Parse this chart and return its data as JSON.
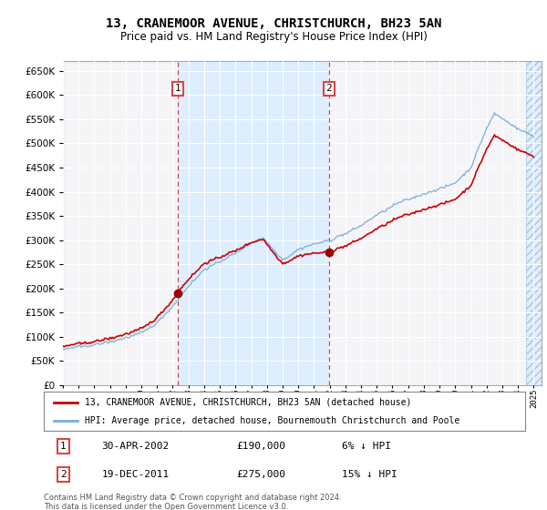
{
  "title": "13, CRANEMOOR AVENUE, CHRISTCHURCH, BH23 5AN",
  "subtitle": "Price paid vs. HM Land Registry's House Price Index (HPI)",
  "hpi_label": "HPI: Average price, detached house, Bournemouth Christchurch and Poole",
  "price_label": "13, CRANEMOOR AVENUE, CHRISTCHURCH, BH23 5AN (detached house)",
  "sale1_date": "30-APR-2002",
  "sale1_price": 190000,
  "sale1_note": "6% ↓ HPI",
  "sale2_date": "19-DEC-2011",
  "sale2_price": 275000,
  "sale2_note": "15% ↓ HPI",
  "footer": "Contains HM Land Registry data © Crown copyright and database right 2024.\nThis data is licensed under the Open Government Licence v3.0.",
  "hpi_color": "#7aaddb",
  "price_color": "#cc0000",
  "sale_marker_color": "#990000",
  "vline_color": "#dd4444",
  "highlight_color": "#ddeeff",
  "chart_bg": "#f0f4f8",
  "hatch_color": "#b0c4d8",
  "ylim_min": 0,
  "ylim_max": 670000,
  "ytick_step": 50000,
  "x_start_year": 1995,
  "x_end_year": 2025,
  "sale1_t": 2002.33,
  "sale2_t": 2011.96
}
